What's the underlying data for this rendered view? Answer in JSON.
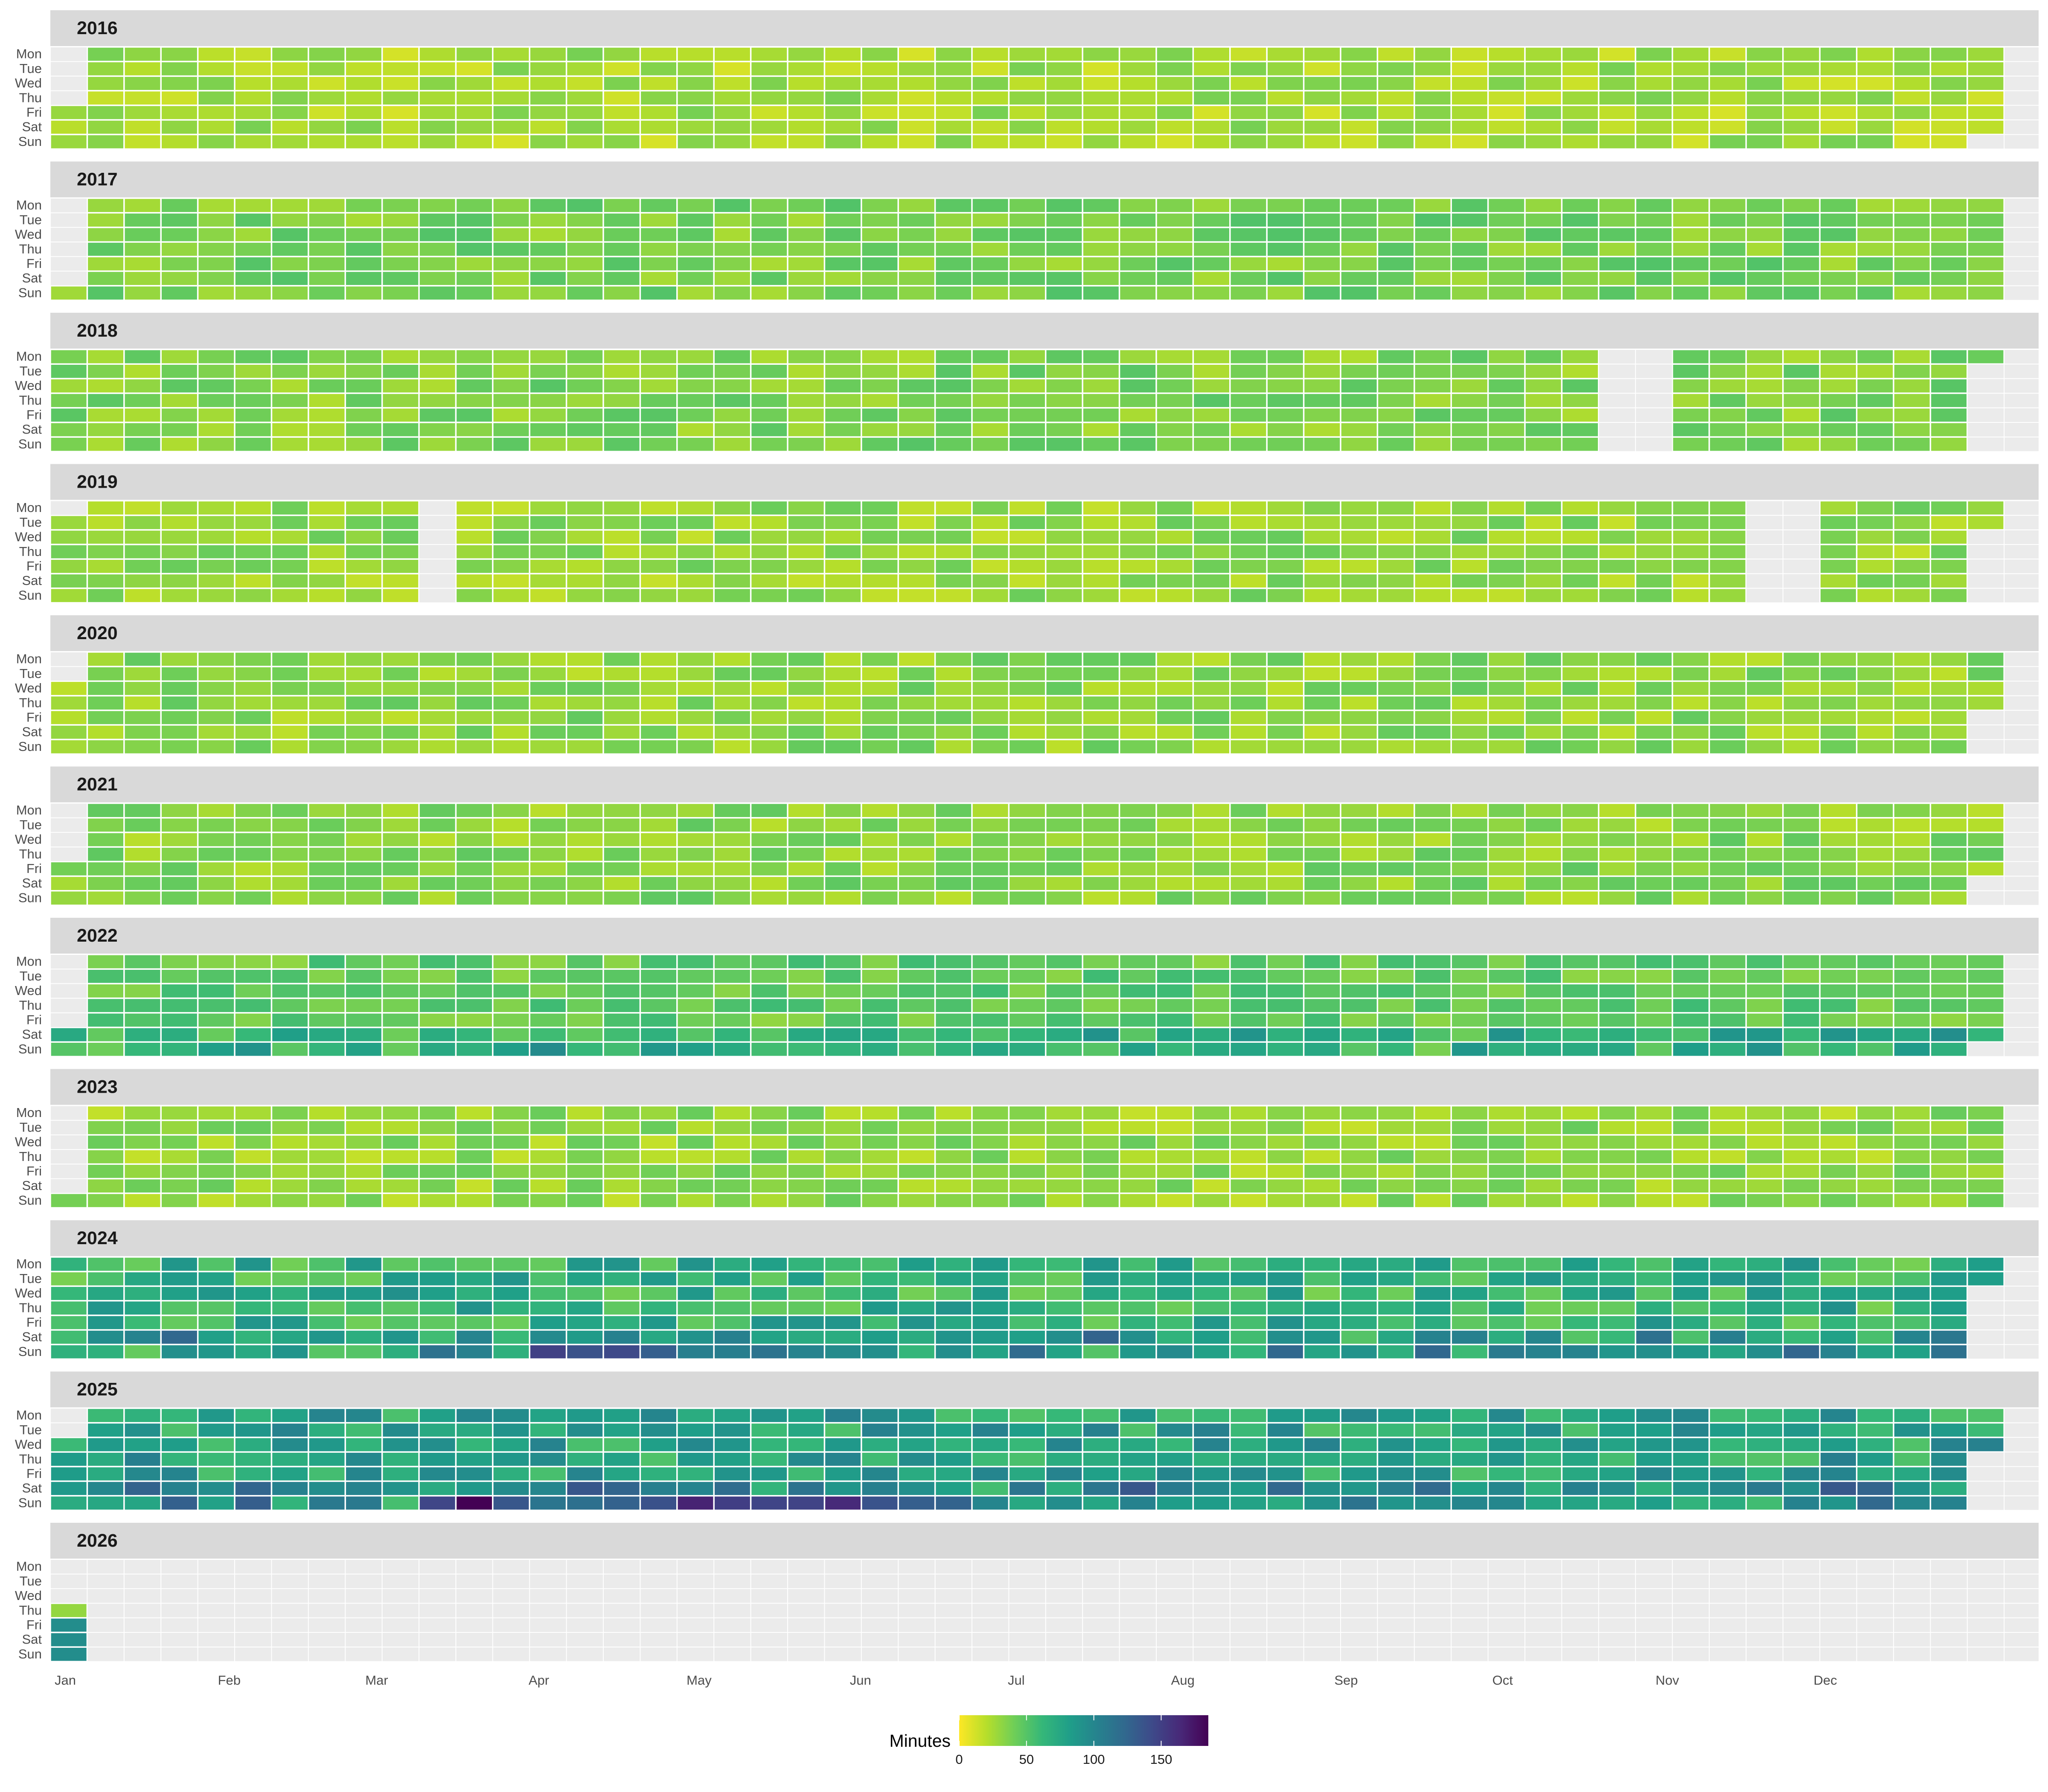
{
  "chart_data": {
    "type": "heatmap",
    "title": "",
    "years": [
      "2016",
      "2017",
      "2018",
      "2019",
      "2020",
      "2021",
      "2022",
      "2023",
      "2024",
      "2025",
      "2026"
    ],
    "weekdays": [
      "Mon",
      "Tue",
      "Wed",
      "Thu",
      "Fri",
      "Sat",
      "Sun"
    ],
    "months": [
      "Jan",
      "Feb",
      "Mar",
      "Apr",
      "May",
      "Jun",
      "Jul",
      "Aug",
      "Sep",
      "Oct",
      "Nov",
      "Dec"
    ],
    "value_unit": "Minutes",
    "legend": {
      "title": "Minutes",
      "ticks": [
        "0",
        "50",
        "100",
        "150"
      ],
      "tick_values": [
        0,
        50,
        100,
        150
      ],
      "range": [
        0,
        185
      ],
      "colors": [
        "#fde725",
        "#b5de2b",
        "#6ece58",
        "#35b779",
        "#1f9e89",
        "#26828e",
        "#31688e",
        "#3e4989",
        "#482878",
        "#440154"
      ],
      "position": "bottom"
    },
    "typical_minutes_by_year": {
      "2016": 25,
      "2017": 38,
      "2018": 36,
      "2019": 30,
      "2020": 32,
      "2021": 33,
      "2022": 45,
      "2023": 30,
      "2024": 65,
      "2025": 78,
      "2026": 90
    },
    "missing_weeks": {
      "2018": [
        42,
        43
      ],
      "2019": [
        10,
        46,
        47
      ]
    },
    "notes_values": {
      "max_single_day_minutes": 185,
      "2026_days_recorded": [
        "Thu",
        "Fri",
        "Sat",
        "Sun"
      ]
    }
  }
}
